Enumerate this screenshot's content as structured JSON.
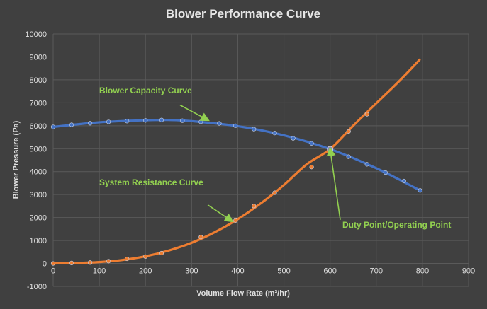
{
  "chart_data": {
    "type": "scatter",
    "title": "Blower Performance Curve",
    "xlabel": "Volume Flow Rate (m³/hr)",
    "ylabel": "Blower Pressure (Pa)",
    "xlim": [
      0,
      900
    ],
    "ylim": [
      -1000,
      10000
    ],
    "x_ticks": [
      "0",
      "100",
      "200",
      "300",
      "400",
      "500",
      "600",
      "700",
      "800",
      "900"
    ],
    "y_ticks": [
      "-1000",
      "0",
      "1000",
      "2000",
      "3000",
      "4000",
      "5000",
      "6000",
      "7000",
      "8000",
      "9000",
      "10000"
    ],
    "grid": true,
    "series": [
      {
        "name": "Blower Capacity Curve",
        "color": "#4472c4",
        "points": [
          [
            0,
            5950
          ],
          [
            40,
            6040
          ],
          [
            80,
            6110
          ],
          [
            120,
            6170
          ],
          [
            160,
            6200
          ],
          [
            200,
            6230
          ],
          [
            235,
            6250
          ],
          [
            280,
            6220
          ],
          [
            320,
            6170
          ],
          [
            360,
            6100
          ],
          [
            395,
            6000
          ],
          [
            435,
            5850
          ],
          [
            480,
            5680
          ],
          [
            520,
            5450
          ],
          [
            560,
            5230
          ],
          [
            600,
            4980
          ],
          [
            640,
            4650
          ],
          [
            680,
            4320
          ],
          [
            720,
            3960
          ],
          [
            760,
            3590
          ],
          [
            795,
            3180
          ]
        ],
        "curve": [
          [
            0,
            5950
          ],
          [
            100,
            6150
          ],
          [
            200,
            6240
          ],
          [
            250,
            6250
          ],
          [
            300,
            6200
          ],
          [
            400,
            5980
          ],
          [
            500,
            5580
          ],
          [
            600,
            4980
          ],
          [
            700,
            4150
          ],
          [
            795,
            3180
          ]
        ]
      },
      {
        "name": "System Resistance Curve",
        "color": "#ed7d31",
        "points": [
          [
            0,
            0
          ],
          [
            40,
            20
          ],
          [
            80,
            40
          ],
          [
            120,
            100
          ],
          [
            160,
            200
          ],
          [
            200,
            300
          ],
          [
            235,
            450
          ],
          [
            320,
            1150
          ],
          [
            395,
            1870
          ],
          [
            435,
            2500
          ],
          [
            480,
            3080
          ],
          [
            560,
            4200
          ],
          [
            600,
            4980
          ],
          [
            640,
            5750
          ],
          [
            680,
            6500
          ]
        ],
        "curve": [
          [
            0,
            0
          ],
          [
            50,
            20
          ],
          [
            100,
            60
          ],
          [
            150,
            150
          ],
          [
            200,
            310
          ],
          [
            250,
            560
          ],
          [
            300,
            900
          ],
          [
            350,
            1360
          ],
          [
            400,
            1930
          ],
          [
            450,
            2620
          ],
          [
            500,
            3420
          ],
          [
            550,
            4330
          ],
          [
            600,
            4980
          ],
          [
            650,
            6000
          ],
          [
            700,
            6980
          ],
          [
            750,
            7950
          ],
          [
            795,
            8900
          ]
        ]
      }
    ],
    "annotations": [
      {
        "label": "Blower Capacity Curve",
        "arrow_from": [
          275,
          6900
        ],
        "arrow_to": [
          335,
          6250
        ]
      },
      {
        "label": "System Resistance Curve",
        "arrow_from": [
          335,
          2550
        ],
        "arrow_to": [
          387,
          1850
        ]
      },
      {
        "label": "Duty Point/Operating Point",
        "arrow_from": [
          622,
          1900
        ],
        "arrow_to": [
          600,
          4980
        ]
      }
    ]
  }
}
